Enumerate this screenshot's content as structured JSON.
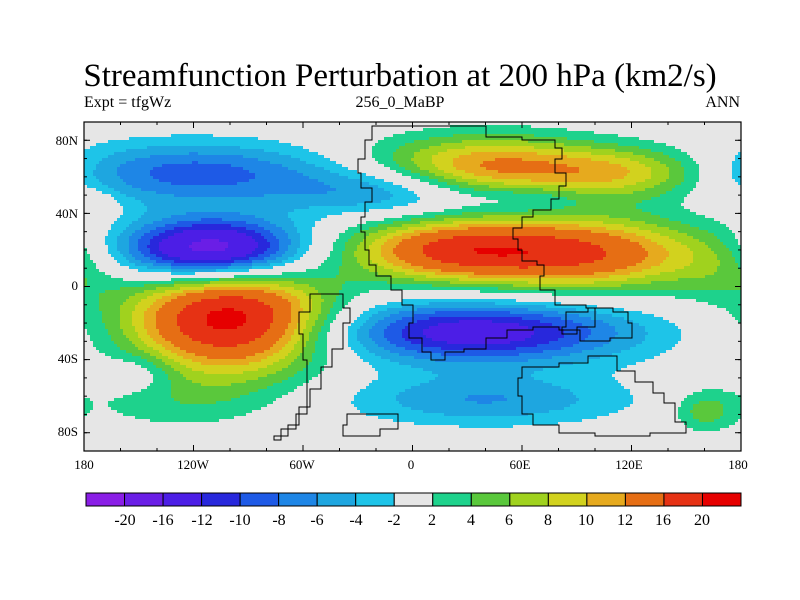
{
  "title": "Streamfunction Perturbation at 200 hPa (km2/s)",
  "subtitle_left": "Expt = tfgWz",
  "subtitle_center": "256_0_MaBP",
  "subtitle_right": "ANN",
  "lat_labels": [
    "80N",
    "40N",
    "0",
    "40S",
    "80S"
  ],
  "lon_labels": [
    "180",
    "120W",
    "60W",
    "0",
    "60E",
    "120E",
    "180"
  ],
  "colorbar": {
    "colors": [
      "#8a1ee6",
      "#6a1ee6",
      "#4c1ee6",
      "#2828dc",
      "#1e5ae6",
      "#1e86e6",
      "#1ea6e0",
      "#1ec4e8",
      "#e6e6e6",
      "#1ed28c",
      "#5ac83c",
      "#a0d21e",
      "#d2d21e",
      "#e6aa1e",
      "#e66e14",
      "#e63214",
      "#e60000"
    ],
    "labels": [
      "-20",
      "-16",
      "-12",
      "-10",
      "-8",
      "-6",
      "-4",
      "-2",
      "2",
      "4",
      "6",
      "8",
      "10",
      "12",
      "16",
      "20"
    ]
  },
  "chart_data": {
    "type": "heatmap",
    "title": "Streamfunction Perturbation at 200 hPa (km2/s)",
    "experiment": "Expt = tfgWz",
    "case": "256_0_MaBP",
    "season": "ANN",
    "x_axis": {
      "min": -180,
      "max": 180,
      "ticks": [
        -180,
        -120,
        -60,
        0,
        60,
        120,
        180
      ]
    },
    "y_axis": {
      "min": -90,
      "max": 90,
      "ticks": [
        80,
        40,
        0,
        -40,
        -80
      ]
    },
    "contour_levels": [
      -20,
      -16,
      -12,
      -10,
      -8,
      -6,
      -4,
      -2,
      2,
      4,
      6,
      8,
      10,
      12,
      16,
      20
    ],
    "features": [
      {
        "lon": -100,
        "lat": -18,
        "amp": 22,
        "label": "positive maximum, SH Pacific"
      },
      {
        "lon": -110,
        "lat": 20,
        "amp": -20,
        "label": "negative minimum, NH Pacific"
      },
      {
        "lon": 20,
        "lat": 20,
        "amp": 15,
        "label": "positive, Africa/Arabia"
      },
      {
        "lon": 95,
        "lat": 18,
        "amp": 15,
        "label": "positive, South Asia"
      },
      {
        "lon": 35,
        "lat": -25,
        "amp": -14,
        "label": "negative minimum, Indian Ocean"
      },
      {
        "lon": 40,
        "lat": 65,
        "amp": 13,
        "label": "positive, Eurasia high latitudes"
      }
    ]
  }
}
